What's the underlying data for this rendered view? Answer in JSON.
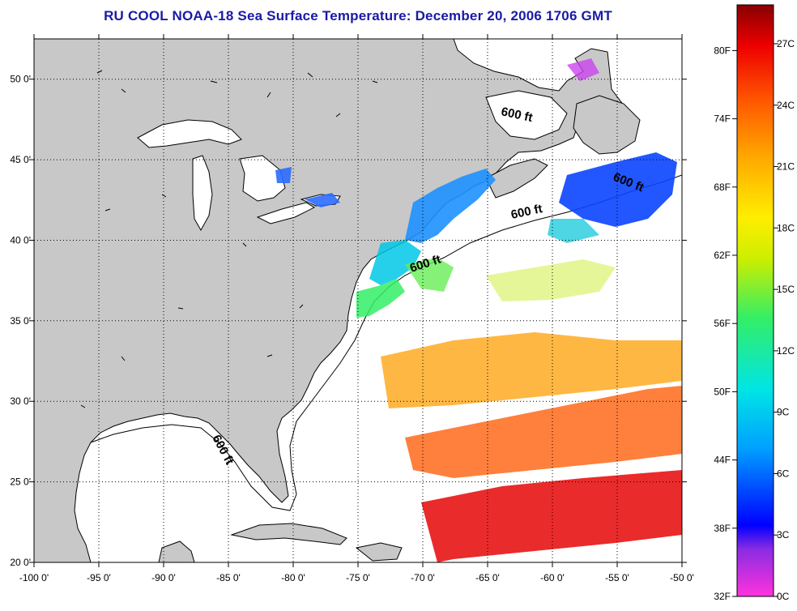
{
  "title": "RU COOL  NOAA-18  Sea Surface Temperature:  December 20, 2006 1706 GMT",
  "map": {
    "lon_range": [
      -100,
      -50
    ],
    "lat_range": [
      20,
      52.5
    ],
    "lon_ticks": [
      {
        "value": -100,
        "label": "-100 0'"
      },
      {
        "value": -95,
        "label": "-95 0'"
      },
      {
        "value": -90,
        "label": "-90 0'"
      },
      {
        "value": -85,
        "label": "-85 0'"
      },
      {
        "value": -80,
        "label": "-80 0'"
      },
      {
        "value": -75,
        "label": "-75 0'"
      },
      {
        "value": -70,
        "label": "-70 0'"
      },
      {
        "value": -65,
        "label": "-65 0'"
      },
      {
        "value": -60,
        "label": "-60 0'"
      },
      {
        "value": -55,
        "label": "-55 0'"
      },
      {
        "value": -50,
        "label": "-50 0'"
      }
    ],
    "lat_ticks": [
      {
        "value": 50,
        "label": "50 0'"
      },
      {
        "value": 45,
        "label": "45 0'"
      },
      {
        "value": 40,
        "label": "40 0'"
      },
      {
        "value": 35,
        "label": "35 0'"
      },
      {
        "value": 30,
        "label": "30 0'"
      },
      {
        "value": 25,
        "label": "25 0'"
      },
      {
        "value": 20,
        "label": "20 0'"
      }
    ],
    "contour_labels": [
      "600 ft",
      "600 ft",
      "600 ft",
      "600 ft",
      "600 ft"
    ],
    "colors": {
      "land": "#c8c8c8",
      "ocean": "#ffffff",
      "grid": "#000000"
    }
  },
  "colorbar": {
    "fahrenheit_labels": [
      "80F",
      "74F",
      "68F",
      "62F",
      "56F",
      "50F",
      "44F",
      "38F",
      "32F"
    ],
    "celsius_labels": [
      "27C",
      "24C",
      "21C",
      "18C",
      "15C",
      "12C",
      "9C",
      "6C",
      "3C",
      "0C"
    ],
    "range_c": [
      0,
      28.9
    ],
    "stops": [
      "#ff33dd",
      "#8a2be2",
      "#0000ff",
      "#00a0ff",
      "#00e5e5",
      "#33ee66",
      "#ccee00",
      "#ffee00",
      "#ffaa00",
      "#ff5500",
      "#ee0000",
      "#880000"
    ]
  }
}
